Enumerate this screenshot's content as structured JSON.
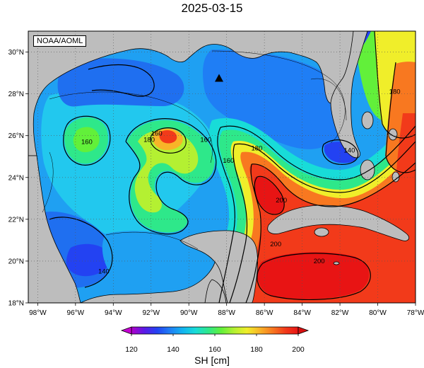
{
  "title": "2025-03-15",
  "credit": "NOAA/AOML",
  "colorbar": {
    "label": "SH [cm]",
    "ticks": [
      120,
      140,
      160,
      180,
      200
    ],
    "min": 120,
    "max": 200,
    "stops": [
      "#b000c8",
      "#5a1ae6",
      "#2342f2",
      "#1f7ef5",
      "#12b4f0",
      "#18dcd8",
      "#2ee88a",
      "#62f03a",
      "#b4f032",
      "#f0ee2a",
      "#f8b428",
      "#f87820",
      "#f23a1a",
      "#e81414"
    ]
  },
  "map": {
    "lon_range": [
      -98.5,
      -78
    ],
    "lat_range": [
      18,
      31
    ],
    "lon_ticks": [
      {
        "v": -98,
        "t": "98°W"
      },
      {
        "v": -96,
        "t": "96°W"
      },
      {
        "v": -94,
        "t": "94°W"
      },
      {
        "v": -92,
        "t": "92°W"
      },
      {
        "v": -90,
        "t": "90°W"
      },
      {
        "v": -88,
        "t": "88°W"
      },
      {
        "v": -86,
        "t": "86°W"
      },
      {
        "v": -84,
        "t": "84°W"
      },
      {
        "v": -82,
        "t": "82°W"
      },
      {
        "v": -80,
        "t": "80°W"
      },
      {
        "v": -78,
        "t": "78°W"
      }
    ],
    "lat_ticks": [
      {
        "v": 18,
        "t": "18°N"
      },
      {
        "v": 20,
        "t": "20°N"
      },
      {
        "v": 22,
        "t": "22°N"
      },
      {
        "v": 24,
        "t": "24°N"
      },
      {
        "v": 26,
        "t": "26°N"
      },
      {
        "v": 28,
        "t": "28°N"
      },
      {
        "v": 30,
        "t": "30°N"
      }
    ],
    "land_color": "#bdbdbd",
    "marker": {
      "lon": -88.4,
      "lat": 28.75,
      "shape": "triangle"
    },
    "contour_labels": [
      {
        "lon": -95.4,
        "lat": 25.6,
        "t": "160"
      },
      {
        "lon": -92.1,
        "lat": 25.7,
        "t": "180"
      },
      {
        "lon": -91.7,
        "lat": 26.0,
        "t": "160"
      },
      {
        "lon": -89.1,
        "lat": 25.7,
        "t": "160"
      },
      {
        "lon": -87.9,
        "lat": 24.7,
        "t": "160"
      },
      {
        "lon": -86.4,
        "lat": 25.3,
        "t": "180"
      },
      {
        "lon": -81.5,
        "lat": 25.2,
        "t": "140"
      },
      {
        "lon": -79.1,
        "lat": 28.0,
        "t": "180"
      },
      {
        "lon": -85.1,
        "lat": 22.8,
        "t": "200"
      },
      {
        "lon": -85.4,
        "lat": 20.7,
        "t": "200"
      },
      {
        "lon": -83.1,
        "lat": 19.9,
        "t": "200"
      },
      {
        "lon": -94.5,
        "lat": 19.4,
        "t": "140"
      }
    ]
  }
}
